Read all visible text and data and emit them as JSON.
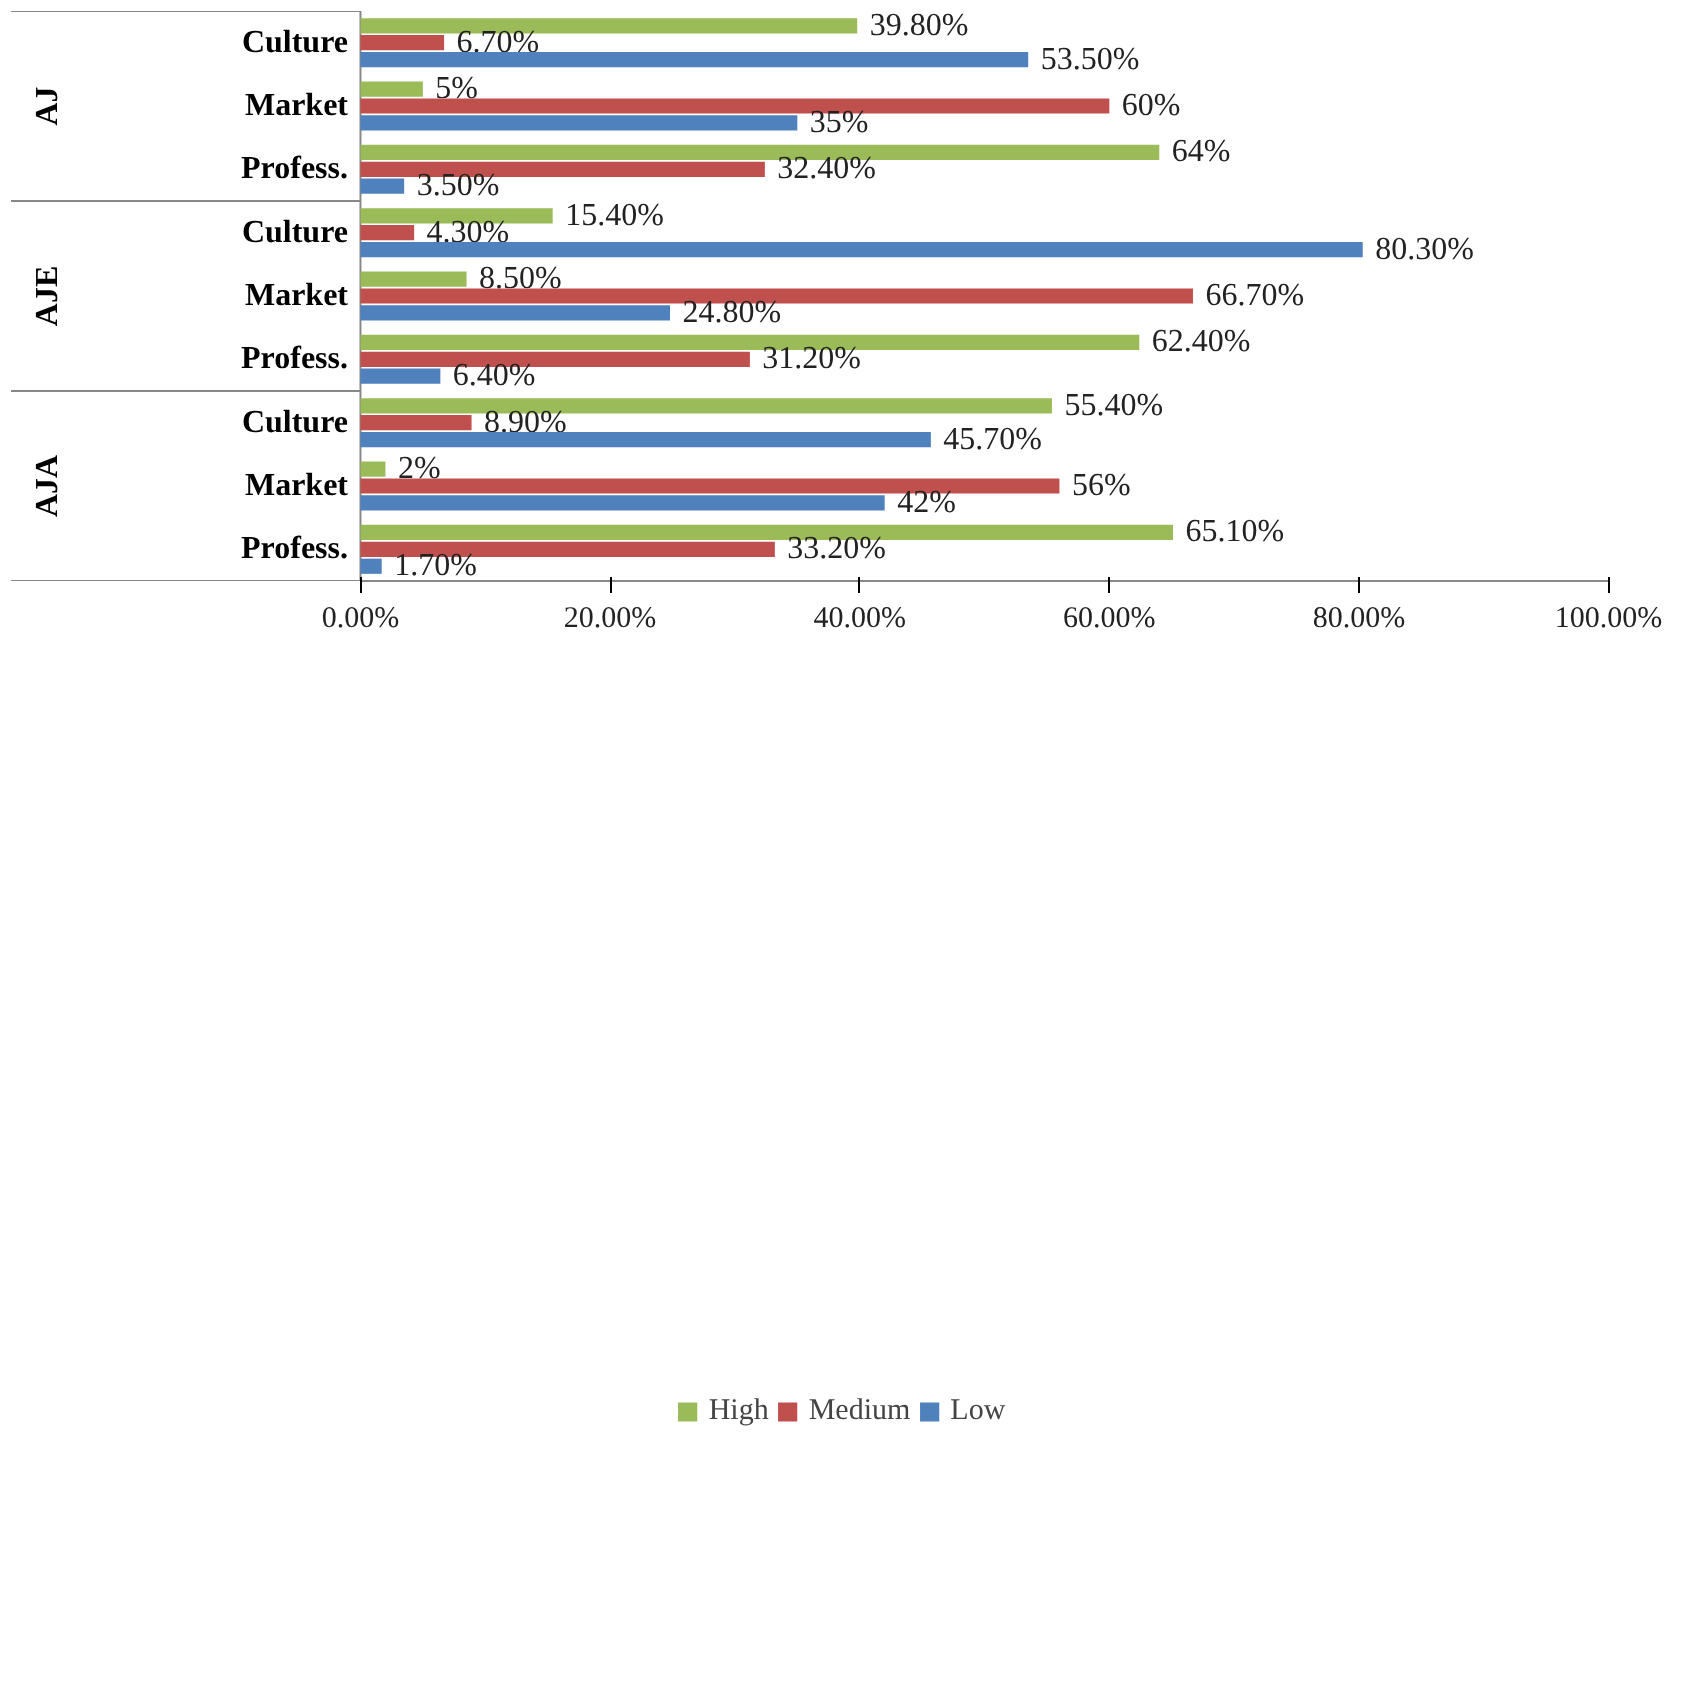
{
  "chart_data": {
    "type": "bar",
    "orientation": "horizontal",
    "categories": [
      "Culture",
      "Market",
      "Profess.",
      "Culture",
      "Market",
      "Profess.",
      "Culture",
      "Market",
      "Profess."
    ],
    "annotations": [
      "AJ",
      "AJE",
      "AJA"
    ],
    "series": [
      {
        "name": "High",
        "color": "#9bbb59",
        "values": [
          39.8,
          5,
          64,
          15.4,
          8.5,
          62.4,
          55.4,
          2,
          65.1
        ],
        "value_labels": [
          "39.80%",
          "5%",
          "64%",
          "15.40%",
          "8.50%",
          "62.40%",
          "55.40%",
          "2%",
          "65.10%"
        ]
      },
      {
        "name": "Medium",
        "color": "#c0504d",
        "values": [
          6.7,
          60,
          32.4,
          4.3,
          66.7,
          31.2,
          8.9,
          56,
          33.2
        ],
        "value_labels": [
          "6.70%",
          "60%",
          "32.40%",
          "4.30%",
          "66.70%",
          "31.20%",
          "8.90%",
          "56%",
          "33.20%"
        ]
      },
      {
        "name": "Low",
        "color": "#4f81bd",
        "values": [
          53.5,
          35,
          3.5,
          80.3,
          24.8,
          6.4,
          45.7,
          42,
          1.7
        ],
        "value_labels": [
          "53.50%",
          "35%",
          "3.50%",
          "80.30%",
          "24.80%",
          "6.40%",
          "45.70%",
          "42%",
          "1.70%"
        ]
      }
    ],
    "xlim": [
      0,
      100
    ],
    "xticks": [
      {
        "value": 0,
        "label": "0.00%"
      },
      {
        "value": 20,
        "label": "20.00%"
      },
      {
        "value": 40,
        "label": "40.00%"
      },
      {
        "value": 60,
        "label": "60.00%"
      },
      {
        "value": 80,
        "label": "80.00%"
      },
      {
        "value": 100,
        "label": "100.00%"
      }
    ],
    "grid": false,
    "legend": "bottom"
  }
}
